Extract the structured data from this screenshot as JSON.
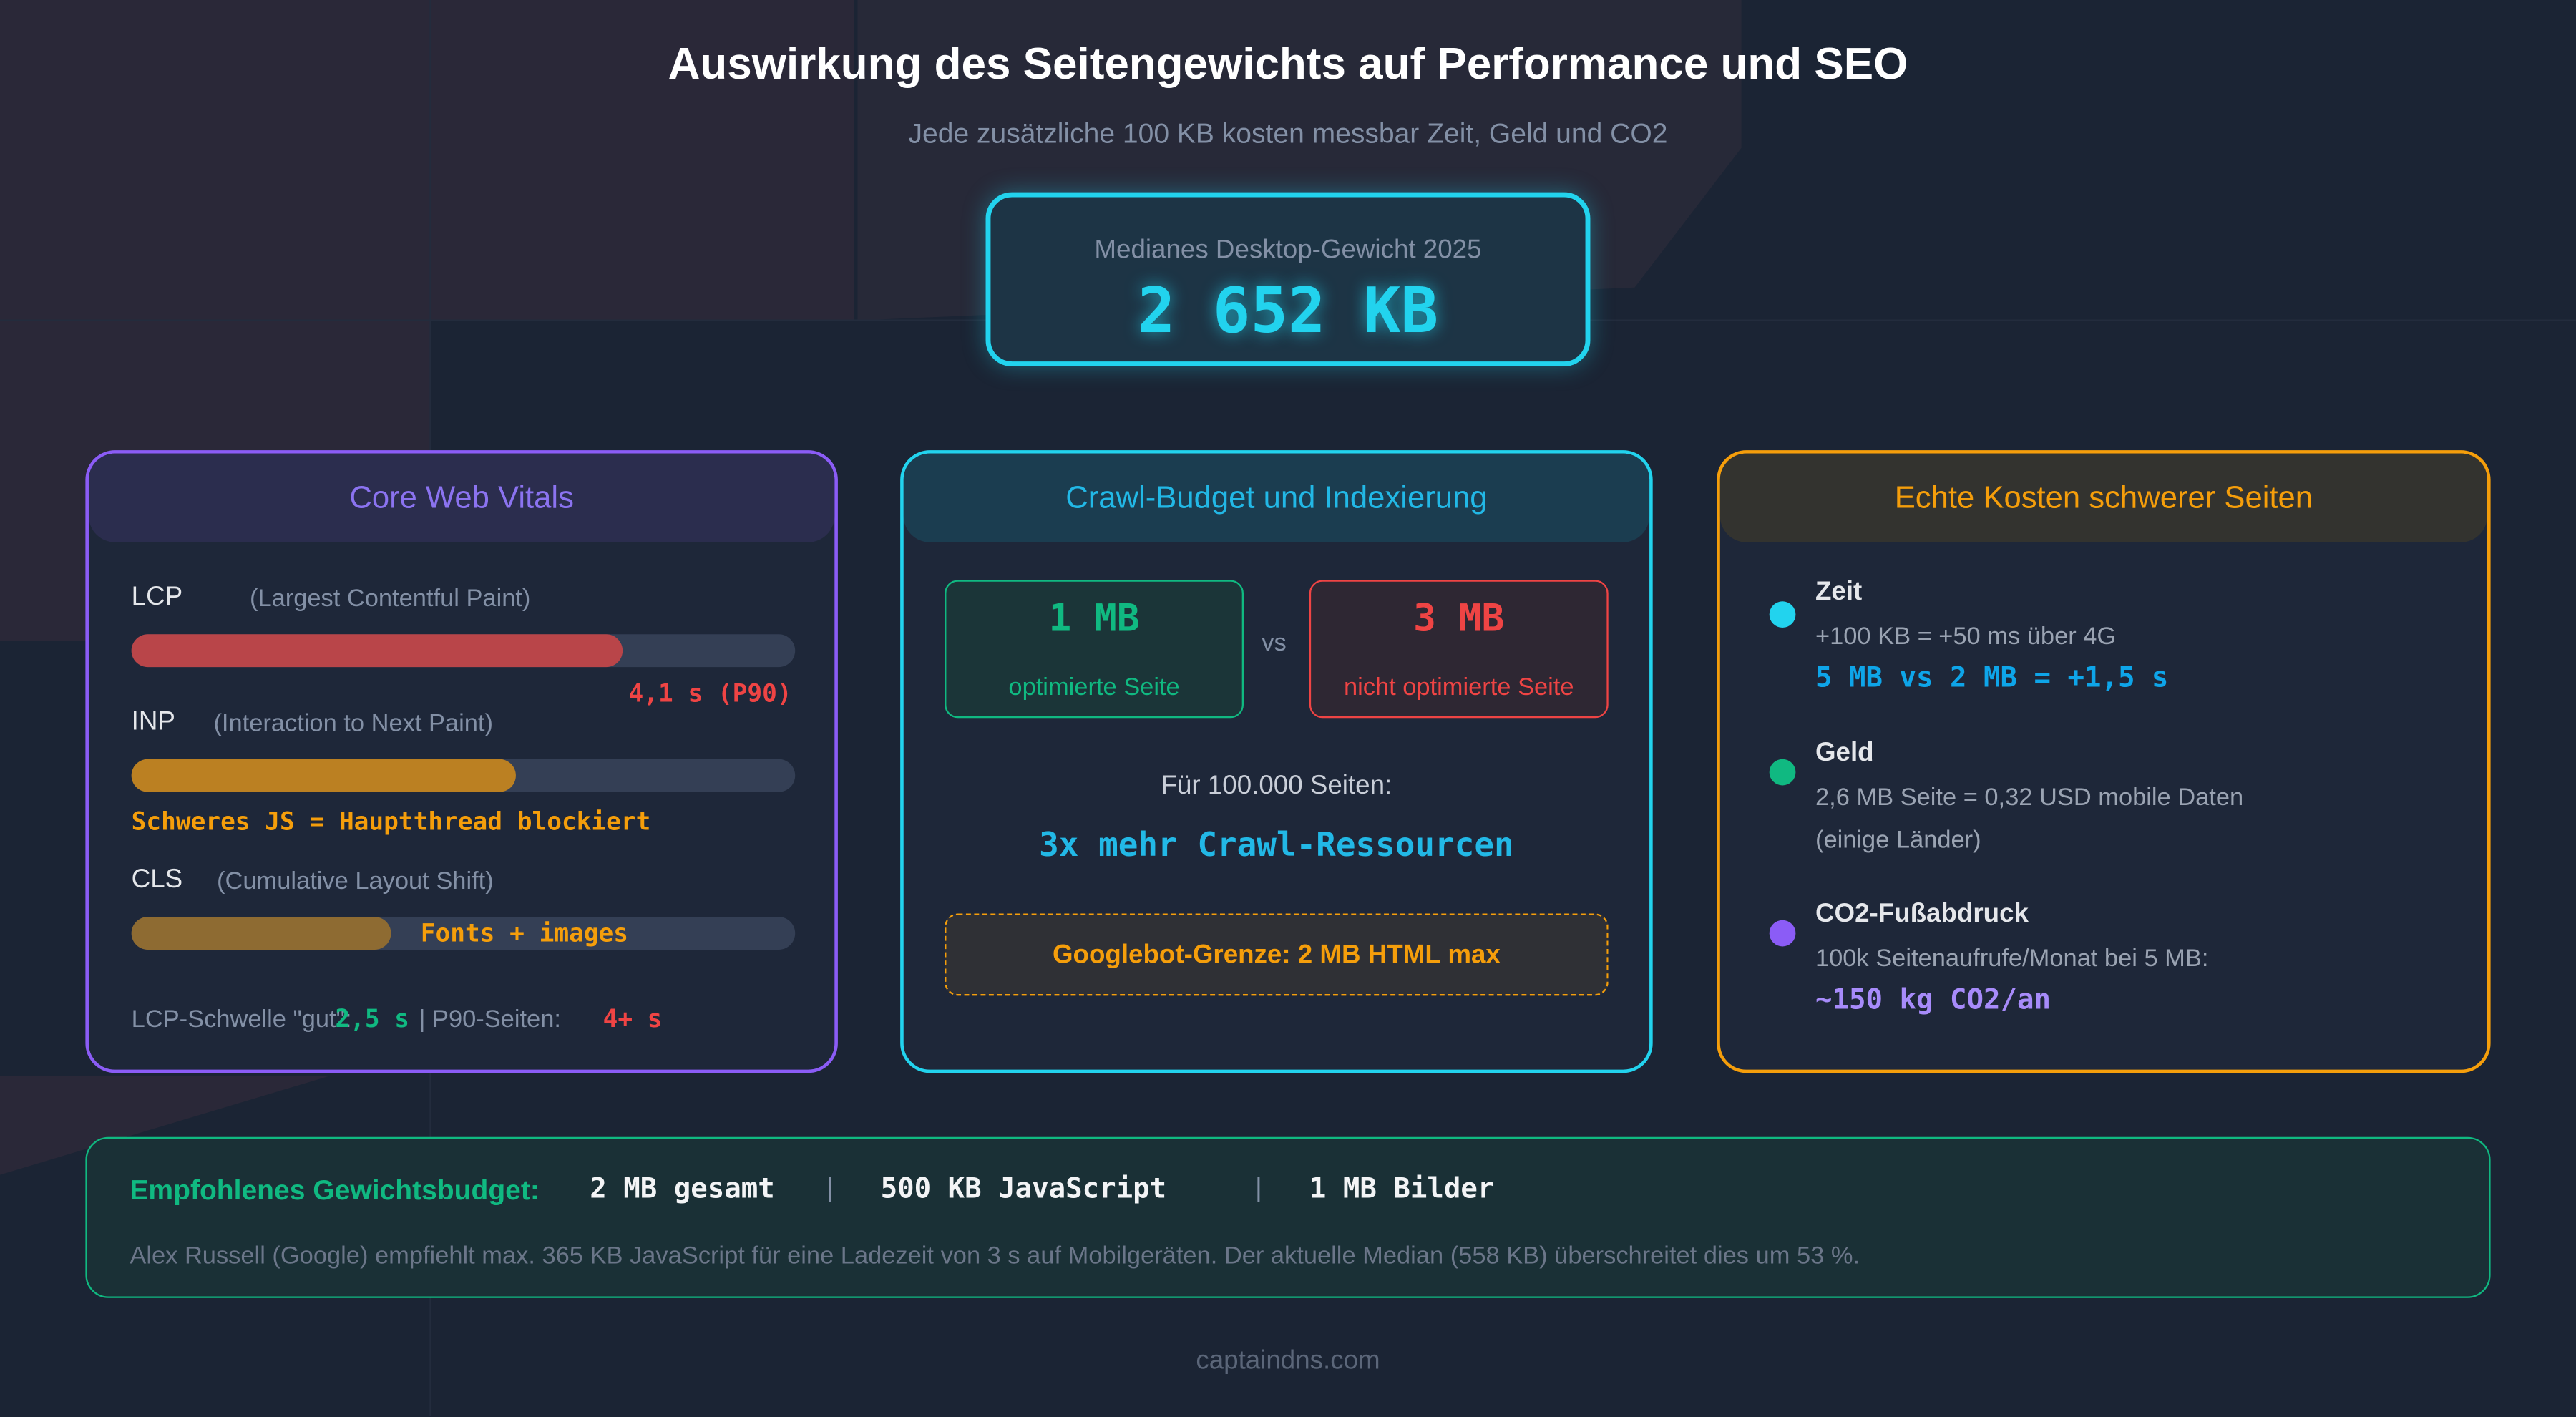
{
  "header": {
    "title": "Auswirkung des Seitengewichts auf Performance und SEO",
    "subtitle": "Jede zusätzliche 100 KB kosten messbar Zeit, Geld und CO2"
  },
  "median": {
    "label": "Medianes Desktop-Gewicht 2025",
    "value": "2 652 KB"
  },
  "cwv": {
    "title": "Core Web Vitals",
    "accent": "#8b5cf6",
    "lcp": {
      "name": "LCP",
      "desc": "(Largest Contentful Paint)",
      "fill_pct": 74,
      "note": "4,1 s (P90)",
      "color": "#b94549"
    },
    "inp": {
      "name": "INP",
      "desc": "(Interaction to Next Paint)",
      "fill_pct": 58,
      "note": "Schweres JS = Hauptthread blockiert",
      "color": "#bb8022"
    },
    "cls": {
      "name": "CLS",
      "desc": "(Cumulative Layout Shift)",
      "fill_pct": 39,
      "note": "Fonts + images",
      "color": "#8e6b32"
    },
    "footer": {
      "threshold_label": "LCP-Schwelle \"gut\":",
      "threshold_value": "2,5 s",
      "sep": "| P90-Seiten:",
      "p90_value": "4+ s"
    }
  },
  "crawl": {
    "title": "Crawl-Budget und Indexierung",
    "accent": "#22d3ee",
    "good": {
      "value": "1 MB",
      "label": "optimierte Seite"
    },
    "vs": "vs",
    "bad": {
      "value": "3 MB",
      "label": "nicht optimierte Seite"
    },
    "pages_label": "Für 100.000 Seiten:",
    "result": "3x mehr Crawl-Ressourcen",
    "limit": "Googlebot-Grenze: 2 MB HTML max"
  },
  "costs": {
    "title": "Echte Kosten schwerer Seiten",
    "accent": "#f59e0b",
    "items": [
      {
        "title": "Zeit",
        "line1": "+100 KB = +50 ms über 4G",
        "highlight": "5 MB vs 2 MB = +1,5 s",
        "color": "#22d3ee"
      },
      {
        "title": "Geld",
        "line1": "2,6 MB Seite = 0,32 USD mobile Daten",
        "line2": "(einige Länder)",
        "color": "#10b981"
      },
      {
        "title": "CO2-Fußabdruck",
        "line1": "100k Seitenaufrufe/Monat bei 5 MB:",
        "highlight": "~150 kg CO2/an",
        "color": "#8b5cf6"
      }
    ]
  },
  "budget": {
    "label": "Empfohlenes Gewichtsbudget:",
    "parts": [
      "2 MB gesamt",
      "500 KB JavaScript",
      "1 MB Bilder"
    ],
    "sep": "|",
    "note": "Alex Russell (Google) empfiehlt max. 365 KB JavaScript für eine Ladezeit von 3 s auf Mobilgeräten. Der aktuelle Median (558 KB) überschreitet dies um 53 %."
  },
  "footer": {
    "brand": "captaindns.com"
  }
}
